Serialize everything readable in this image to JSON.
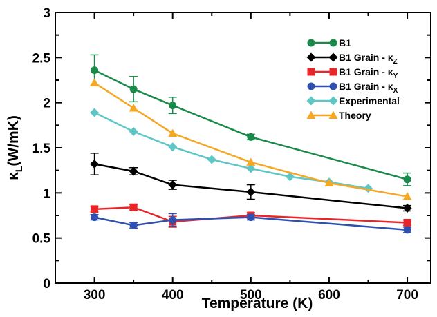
{
  "chart_data": {
    "type": "line",
    "xlabel": "Temperature (K)",
    "ylabel": {
      "base": "κ",
      "sub": "L",
      "rest": "(W/mK)"
    },
    "xlim": [
      250,
      730
    ],
    "ylim": [
      0,
      3
    ],
    "xticks": [
      300,
      400,
      500,
      600,
      700
    ],
    "xtick_labels": [
      "300",
      "400",
      "500",
      "600",
      "700"
    ],
    "yticks": [
      0,
      0.5,
      1,
      1.5,
      2,
      2.5,
      3
    ],
    "ytick_labels": [
      "0",
      "0.5",
      "1",
      "1.5",
      "2",
      "2.5",
      "3"
    ],
    "grid": false,
    "legend_position": "top-right",
    "series": [
      {
        "name": "B1",
        "label_base": "B1",
        "label_sub": "",
        "color": "#1a8a4a",
        "marker": "circle",
        "x": [
          300,
          350,
          400,
          500,
          700
        ],
        "y": [
          2.36,
          2.15,
          1.97,
          1.62,
          1.15
        ],
        "err": [
          0.17,
          0.14,
          0.09,
          0.03,
          0.07
        ]
      },
      {
        "name": "B1 Grain - κZ",
        "label_base": "B1 Grain - κ",
        "label_sub": "Z",
        "color": "#000000",
        "marker": "diamond",
        "x": [
          300,
          350,
          400,
          500,
          700
        ],
        "y": [
          1.32,
          1.24,
          1.09,
          1.01,
          0.83
        ],
        "err": [
          0.12,
          0.04,
          0.05,
          0.08,
          0.03
        ]
      },
      {
        "name": "B1 Grain - κY",
        "label_base": "B1 Grain - κ",
        "label_sub": "Y",
        "color": "#e8262a",
        "marker": "square",
        "x": [
          300,
          350,
          400,
          500,
          700
        ],
        "y": [
          0.82,
          0.84,
          0.68,
          0.75,
          0.67
        ],
        "err": [
          0.03,
          0.03,
          0.06,
          0.03,
          0.03
        ]
      },
      {
        "name": "B1 Grain - κX",
        "label_base": "B1 Grain - κ",
        "label_sub": "X",
        "color": "#3050b0",
        "marker": "circle",
        "x": [
          300,
          350,
          400,
          500,
          700
        ],
        "y": [
          0.73,
          0.64,
          0.7,
          0.73,
          0.59
        ],
        "err": [
          0.03,
          0.03,
          0.07,
          0.03,
          0.03
        ]
      },
      {
        "name": "Experimental",
        "label_base": "Experimental",
        "label_sub": "",
        "color": "#5fc6c6",
        "marker": "diamond",
        "x": [
          300,
          350,
          400,
          450,
          500,
          550,
          600,
          650
        ],
        "y": [
          1.89,
          1.68,
          1.51,
          1.37,
          1.27,
          1.18,
          1.12,
          1.05
        ],
        "err": null
      },
      {
        "name": "Theory",
        "label_base": "Theory",
        "label_sub": "",
        "color": "#f5a623",
        "marker": "triangle",
        "x": [
          300,
          350,
          400,
          500,
          600,
          700
        ],
        "y": [
          2.22,
          1.94,
          1.66,
          1.34,
          1.11,
          0.96
        ],
        "err": null
      }
    ]
  }
}
